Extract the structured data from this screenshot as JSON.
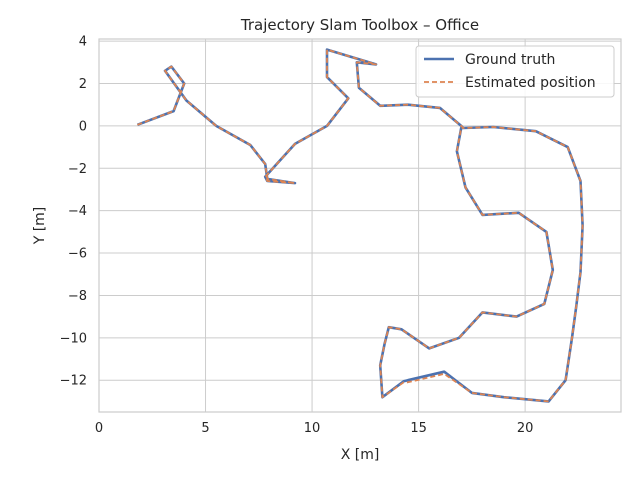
{
  "chart_data": {
    "type": "line",
    "title": "Trajectory Slam Toolbox – Office",
    "xlabel": "X [m]",
    "ylabel": "Y [m]",
    "xlim": [
      0,
      24.5
    ],
    "ylim": [
      -13.5,
      4.1
    ],
    "xticks": [
      0,
      5,
      10,
      15,
      20
    ],
    "yticks": [
      4,
      2,
      0,
      -2,
      -4,
      -6,
      -8,
      -10,
      -12
    ],
    "grid": true,
    "legend_position": "top-right",
    "colors": {
      "ground_truth": "#4c72b0",
      "estimated": "#dd8452",
      "grid": "#cccccc",
      "axes": "#cccccc"
    },
    "series": [
      {
        "name": "Ground truth",
        "style": "solid",
        "x": [
          1.8,
          3.5,
          4.0,
          3.4,
          3.1,
          4.1,
          5.5,
          7.1,
          7.8,
          7.9,
          9.2,
          7.9,
          7.8,
          9.2,
          10.7,
          11.7,
          10.7,
          10.7,
          13.0,
          12.1,
          12.2,
          13.2,
          14.5,
          16.0,
          17.0,
          17.1,
          18.5,
          20.5,
          22.0,
          22.6,
          22.7,
          22.6,
          22.4,
          22.2,
          21.9,
          21.1,
          19.0,
          17.5,
          16.2,
          14.5,
          14.3,
          13.3,
          13.2,
          13.4,
          13.6,
          14.2,
          15.5,
          16.9,
          18.0,
          19.6,
          20.9,
          21.3,
          21.0,
          19.7,
          18.0,
          17.2,
          16.8,
          17.0,
          17.1
        ],
        "y": [
          0.05,
          0.7,
          2.0,
          2.8,
          2.6,
          1.2,
          0.0,
          -0.9,
          -1.8,
          -2.5,
          -2.7,
          -2.6,
          -2.4,
          -0.85,
          0.0,
          1.3,
          2.3,
          3.6,
          2.9,
          3.0,
          1.8,
          0.95,
          1.0,
          0.85,
          0.0,
          -0.1,
          -0.05,
          -0.25,
          -1.0,
          -2.6,
          -4.7,
          -6.9,
          -8.5,
          -10.0,
          -12.0,
          -13.0,
          -12.8,
          -12.6,
          -11.6,
          -12.0,
          -12.05,
          -12.8,
          -11.3,
          -10.3,
          -9.5,
          -9.6,
          -10.5,
          -10.0,
          -8.8,
          -9.0,
          -8.4,
          -6.8,
          -5.0,
          -4.1,
          -4.2,
          -2.9,
          -1.2,
          -0.1,
          -0.1
        ]
      },
      {
        "name": "Estimated position",
        "style": "dashed",
        "x": [
          1.8,
          3.5,
          4.0,
          3.4,
          3.1,
          4.1,
          5.5,
          7.1,
          7.8,
          7.9,
          9.2,
          7.9,
          7.8,
          9.2,
          10.7,
          11.7,
          10.7,
          10.7,
          13.0,
          12.1,
          12.2,
          13.2,
          14.5,
          16.0,
          17.0,
          17.1,
          18.5,
          20.5,
          22.0,
          22.6,
          22.7,
          22.6,
          22.4,
          22.2,
          21.9,
          21.1,
          19.0,
          17.5,
          16.2,
          14.5,
          14.3,
          13.3,
          13.2,
          13.4,
          13.6,
          14.2,
          15.5,
          16.9,
          18.0,
          19.6,
          20.9,
          21.3,
          21.0,
          19.7,
          18.0,
          17.2,
          16.8,
          17.0,
          17.1
        ],
        "y": [
          0.05,
          0.7,
          2.0,
          2.8,
          2.6,
          1.2,
          0.0,
          -0.9,
          -1.8,
          -2.5,
          -2.7,
          -2.6,
          -2.4,
          -0.85,
          0.0,
          1.3,
          2.3,
          3.6,
          2.9,
          3.0,
          1.8,
          0.95,
          1.0,
          0.85,
          0.0,
          -0.1,
          -0.05,
          -0.25,
          -1.0,
          -2.6,
          -4.7,
          -6.9,
          -8.5,
          -10.0,
          -12.0,
          -13.0,
          -12.8,
          -12.6,
          -11.7,
          -12.1,
          -12.1,
          -12.8,
          -11.3,
          -10.3,
          -9.5,
          -9.6,
          -10.5,
          -10.0,
          -8.8,
          -9.0,
          -8.4,
          -6.8,
          -5.0,
          -4.1,
          -4.2,
          -2.9,
          -1.2,
          -0.1,
          -0.1
        ]
      }
    ]
  }
}
